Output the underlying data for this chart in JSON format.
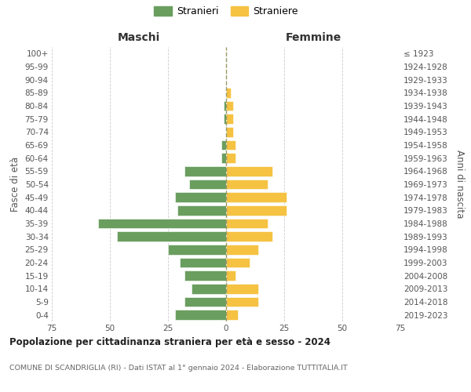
{
  "age_groups": [
    "0-4",
    "5-9",
    "10-14",
    "15-19",
    "20-24",
    "25-29",
    "30-34",
    "35-39",
    "40-44",
    "45-49",
    "50-54",
    "55-59",
    "60-64",
    "65-69",
    "70-74",
    "75-79",
    "80-84",
    "85-89",
    "90-94",
    "95-99",
    "100+"
  ],
  "birth_years": [
    "2019-2023",
    "2014-2018",
    "2009-2013",
    "2004-2008",
    "1999-2003",
    "1994-1998",
    "1989-1993",
    "1984-1988",
    "1979-1983",
    "1974-1978",
    "1969-1973",
    "1964-1968",
    "1959-1963",
    "1954-1958",
    "1949-1953",
    "1944-1948",
    "1939-1943",
    "1934-1938",
    "1929-1933",
    "1924-1928",
    "≤ 1923"
  ],
  "males": [
    22,
    18,
    15,
    18,
    20,
    25,
    47,
    55,
    21,
    22,
    16,
    18,
    2,
    2,
    0,
    1,
    1,
    0,
    0,
    0,
    0
  ],
  "females": [
    5,
    14,
    14,
    4,
    10,
    14,
    20,
    18,
    26,
    26,
    18,
    20,
    4,
    4,
    3,
    3,
    3,
    2,
    0,
    0,
    0
  ],
  "male_color": "#6a9e5f",
  "female_color": "#f5c242",
  "title_main": "Popolazione per cittadinanza straniera per età e sesso - 2024",
  "title_sub": "COMUNE DI SCANDRIGLIA (RI) - Dati ISTAT al 1° gennaio 2024 - Elaborazione TUTTITALIA.IT",
  "xlabel_left": "Maschi",
  "xlabel_right": "Femmine",
  "ylabel_left": "Fasce di età",
  "ylabel_right": "Anni di nascita",
  "legend_male": "Stranieri",
  "legend_female": "Straniere",
  "xlim": 75,
  "background_color": "#ffffff",
  "grid_color": "#cccccc"
}
